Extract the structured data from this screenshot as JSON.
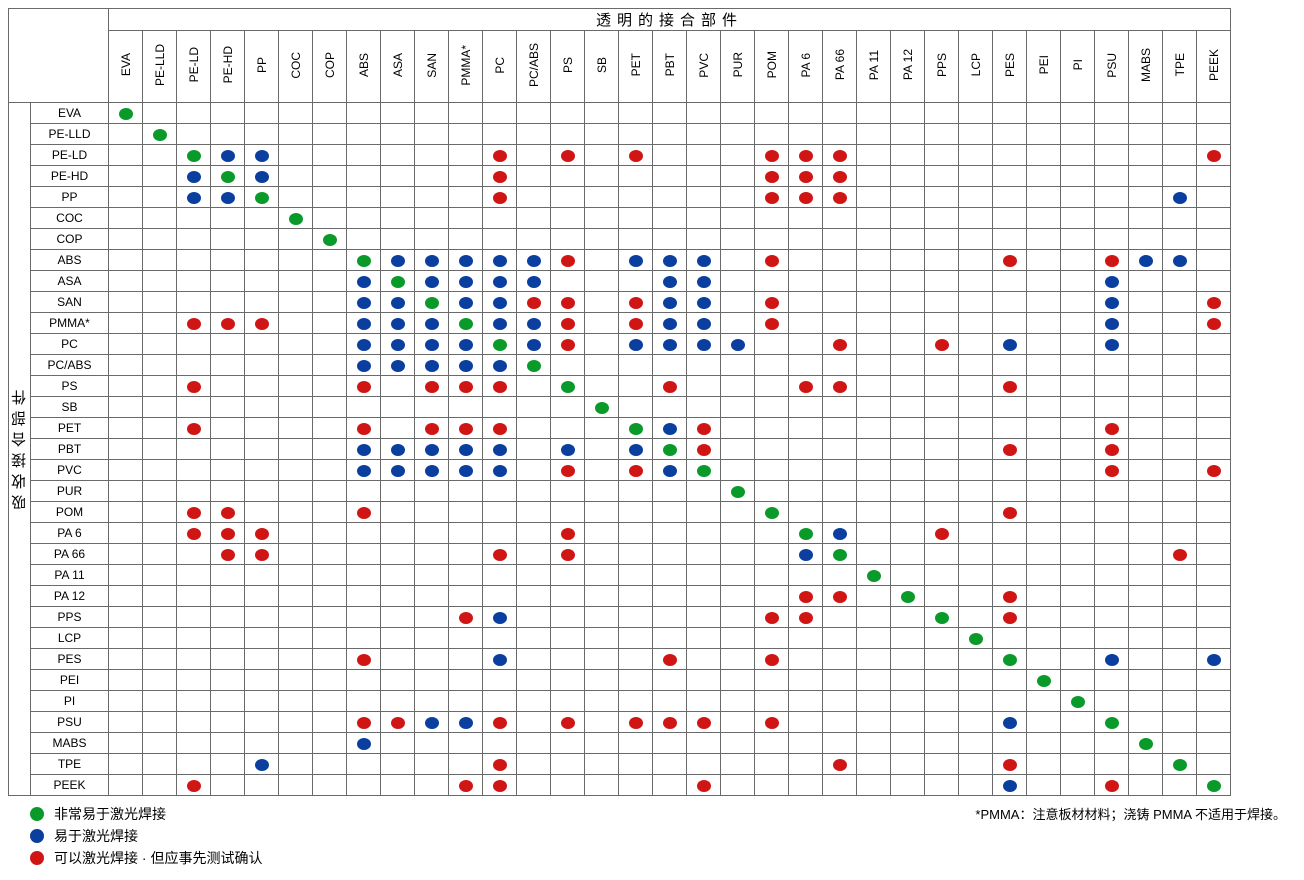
{
  "colors": {
    "green": "#0a9a2a",
    "blue": "#0a3fa0",
    "red": "#d01515",
    "border": "#6a6a6a",
    "bg": "#ffffff"
  },
  "top_title": "透明的接合部件",
  "side_title": "吸收接合部件",
  "pmma_note": "*PMMA：注意板材材料；浇铸 PMMA 不适用于焊接。",
  "legend": [
    {
      "color": "green",
      "label": "非常易于激光焊接"
    },
    {
      "color": "blue",
      "label": "易于激光焊接"
    },
    {
      "color": "red",
      "label": "可以激光焊接 · 但应事先测试确认"
    }
  ],
  "materials": [
    "EVA",
    "PE-LLD",
    "PE-LD",
    "PE-HD",
    "PP",
    "COC",
    "COP",
    "ABS",
    "ASA",
    "SAN",
    "PMMA*",
    "PC",
    "PC/ABS",
    "PS",
    "SB",
    "PET",
    "PBT",
    "PVC",
    "PUR",
    "POM",
    "PA 6",
    "PA 66",
    "PA 11",
    "PA 12",
    "PPS",
    "LCP",
    "PES",
    "PEI",
    "PI",
    "PSU",
    "MABS",
    "TPE",
    "PEEK"
  ],
  "matrix": {
    "EVA": {
      "EVA": "G"
    },
    "PE-LLD": {
      "PE-LLD": "G"
    },
    "PE-LD": {
      "PE-LD": "G",
      "PE-HD": "B",
      "PP": "B",
      "PC": "R",
      "PS": "R",
      "PET": "R",
      "POM": "R",
      "PA 6": "R",
      "PA 66": "R",
      "PEEK": "R"
    },
    "PE-HD": {
      "PE-LD": "B",
      "PE-HD": "G",
      "PP": "B",
      "PC": "R",
      "POM": "R",
      "PA 6": "R",
      "PA 66": "R"
    },
    "PP": {
      "PE-LD": "B",
      "PE-HD": "B",
      "PP": "G",
      "PC": "R",
      "POM": "R",
      "PA 6": "R",
      "PA 66": "R",
      "TPE": "B"
    },
    "COC": {
      "COC": "G"
    },
    "COP": {
      "COP": "G"
    },
    "ABS": {
      "ABS": "G",
      "ASA": "B",
      "SAN": "B",
      "PMMA*": "B",
      "PC": "B",
      "PC/ABS": "B",
      "PS": "R",
      "PET": "B",
      "PBT": "B",
      "PVC": "B",
      "POM": "R",
      "PES": "R",
      "PSU": "R",
      "MABS": "B",
      "TPE": "B"
    },
    "ASA": {
      "ABS": "B",
      "ASA": "G",
      "SAN": "B",
      "PMMA*": "B",
      "PC": "B",
      "PC/ABS": "B",
      "PBT": "B",
      "PVC": "B",
      "PSU": "B"
    },
    "SAN": {
      "ABS": "B",
      "ASA": "B",
      "SAN": "G",
      "PMMA*": "B",
      "PC": "B",
      "PC/ABS": "R",
      "PS": "R",
      "PET": "R",
      "PBT": "B",
      "PVC": "B",
      "POM": "R",
      "PSU": "B",
      "PEEK": "R"
    },
    "PMMA*": {
      "PE-LD": "R",
      "PE-HD": "R",
      "PP": "R",
      "ABS": "B",
      "ASA": "B",
      "SAN": "B",
      "PMMA*": "G",
      "PC": "B",
      "PC/ABS": "B",
      "PS": "R",
      "PET": "R",
      "PBT": "B",
      "PVC": "B",
      "POM": "R",
      "PSU": "B",
      "PEEK": "R"
    },
    "PC": {
      "ABS": "B",
      "ASA": "B",
      "SAN": "B",
      "PMMA*": "B",
      "PC": "G",
      "PC/ABS": "B",
      "PS": "R",
      "PET": "B",
      "PBT": "B",
      "PVC": "B",
      "PUR": "B",
      "PA 66": "R",
      "PPS": "R",
      "PES": "B",
      "PSU": "B"
    },
    "PC/ABS": {
      "ABS": "B",
      "ASA": "B",
      "SAN": "B",
      "PMMA*": "B",
      "PC": "B",
      "PC/ABS": "G"
    },
    "PS": {
      "PE-LD": "R",
      "ABS": "R",
      "SAN": "R",
      "PMMA*": "R",
      "PC": "R",
      "PS": "G",
      "PBT": "R",
      "PA 6": "R",
      "PA 66": "R",
      "PES": "R"
    },
    "SB": {
      "SB": "G"
    },
    "PET": {
      "PE-LD": "R",
      "ABS": "R",
      "SAN": "R",
      "PMMA*": "R",
      "PC": "R",
      "PET": "G",
      "PBT": "B",
      "PVC": "R",
      "PSU": "R"
    },
    "PBT": {
      "ABS": "B",
      "ASA": "B",
      "SAN": "B",
      "PMMA*": "B",
      "PC": "B",
      "PS": "B",
      "PET": "B",
      "PBT": "G",
      "PVC": "R",
      "PES": "R",
      "PSU": "R"
    },
    "PVC": {
      "ABS": "B",
      "ASA": "B",
      "SAN": "B",
      "PMMA*": "B",
      "PC": "B",
      "PS": "R",
      "PET": "R",
      "PBT": "B",
      "PVC": "G",
      "PSU": "R",
      "PEEK": "R"
    },
    "PUR": {
      "PUR": "G"
    },
    "POM": {
      "PE-LD": "R",
      "PE-HD": "R",
      "ABS": "R",
      "POM": "G",
      "PES": "R"
    },
    "PA 6": {
      "PE-LD": "R",
      "PE-HD": "R",
      "PP": "R",
      "PS": "R",
      "PA 6": "G",
      "PA 66": "B",
      "PPS": "R"
    },
    "PA 66": {
      "PE-HD": "R",
      "PP": "R",
      "PC": "R",
      "PS": "R",
      "PA 6": "B",
      "PA 66": "G",
      "TPE": "R"
    },
    "PA 11": {
      "PA 11": "G"
    },
    "PA 12": {
      "PA 6": "R",
      "PA 66": "R",
      "PA 12": "G",
      "PES": "R"
    },
    "PPS": {
      "PMMA*": "R",
      "PC": "B",
      "POM": "R",
      "PA 6": "R",
      "PPS": "G",
      "PES": "R"
    },
    "LCP": {
      "LCP": "G"
    },
    "PES": {
      "ABS": "R",
      "PC": "B",
      "PBT": "R",
      "POM": "R",
      "PES": "G",
      "PSU": "B",
      "PEEK": "B"
    },
    "PEI": {
      "PEI": "G"
    },
    "PI": {
      "PI": "G"
    },
    "PSU": {
      "ABS": "R",
      "ASA": "R",
      "SAN": "B",
      "PMMA*": "B",
      "PC": "R",
      "PS": "R",
      "PET": "R",
      "PBT": "R",
      "PVC": "R",
      "POM": "R",
      "PES": "B",
      "PSU": "G"
    },
    "MABS": {
      "ABS": "B",
      "MABS": "G"
    },
    "TPE": {
      "PP": "B",
      "PC": "R",
      "PA 66": "R",
      "PES": "R",
      "TPE": "G"
    },
    "PEEK": {
      "PE-LD": "R",
      "PMMA*": "R",
      "PC": "R",
      "PVC": "R",
      "PES": "B",
      "PSU": "R",
      "PEEK": "G"
    }
  },
  "cell_size": {
    "w": 34,
    "h": 21
  },
  "dot_size": {
    "w": 14,
    "h": 12
  },
  "font_sizes": {
    "header": 12,
    "title": 15,
    "legend": 14,
    "note": 13
  }
}
